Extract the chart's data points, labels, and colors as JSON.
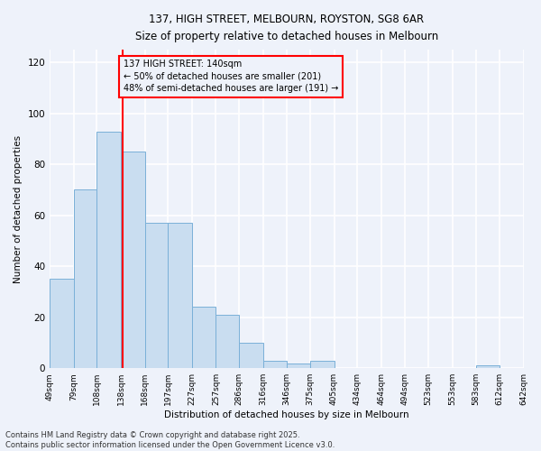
{
  "title_line1": "137, HIGH STREET, MELBOURN, ROYSTON, SG8 6AR",
  "title_line2": "Size of property relative to detached houses in Melbourn",
  "xlabel": "Distribution of detached houses by size in Melbourn",
  "ylabel": "Number of detached properties",
  "bar_heights": [
    35,
    70,
    93,
    85,
    57,
    57,
    24,
    21,
    10,
    3,
    2,
    3,
    0,
    0,
    0,
    0,
    0,
    0,
    1,
    0
  ],
  "bin_edges": [
    49,
    79,
    108,
    138,
    168,
    197,
    227,
    257,
    286,
    316,
    346,
    375,
    405,
    434,
    464,
    494,
    523,
    553,
    583,
    612,
    642
  ],
  "bar_color": "#c9ddf0",
  "bar_edge_color": "#7ab0d8",
  "vline_x": 140,
  "vline_color": "red",
  "annotation_text": "137 HIGH STREET: 140sqm\n← 50% of detached houses are smaller (201)\n48% of semi-detached houses are larger (191) →",
  "annotation_box_color": "red",
  "ylim": [
    0,
    125
  ],
  "yticks": [
    0,
    20,
    40,
    60,
    80,
    100,
    120
  ],
  "x_labels": [
    "49sqm",
    "79sqm",
    "108sqm",
    "138sqm",
    "168sqm",
    "197sqm",
    "227sqm",
    "257sqm",
    "286sqm",
    "316sqm",
    "346sqm",
    "375sqm",
    "405sqm",
    "434sqm",
    "464sqm",
    "494sqm",
    "523sqm",
    "553sqm",
    "583sqm",
    "612sqm",
    "642sqm"
  ],
  "footer_text": "Contains HM Land Registry data © Crown copyright and database right 2025.\nContains public sector information licensed under the Open Government Licence v3.0.",
  "background_color": "#eef2fa",
  "grid_color": "white"
}
